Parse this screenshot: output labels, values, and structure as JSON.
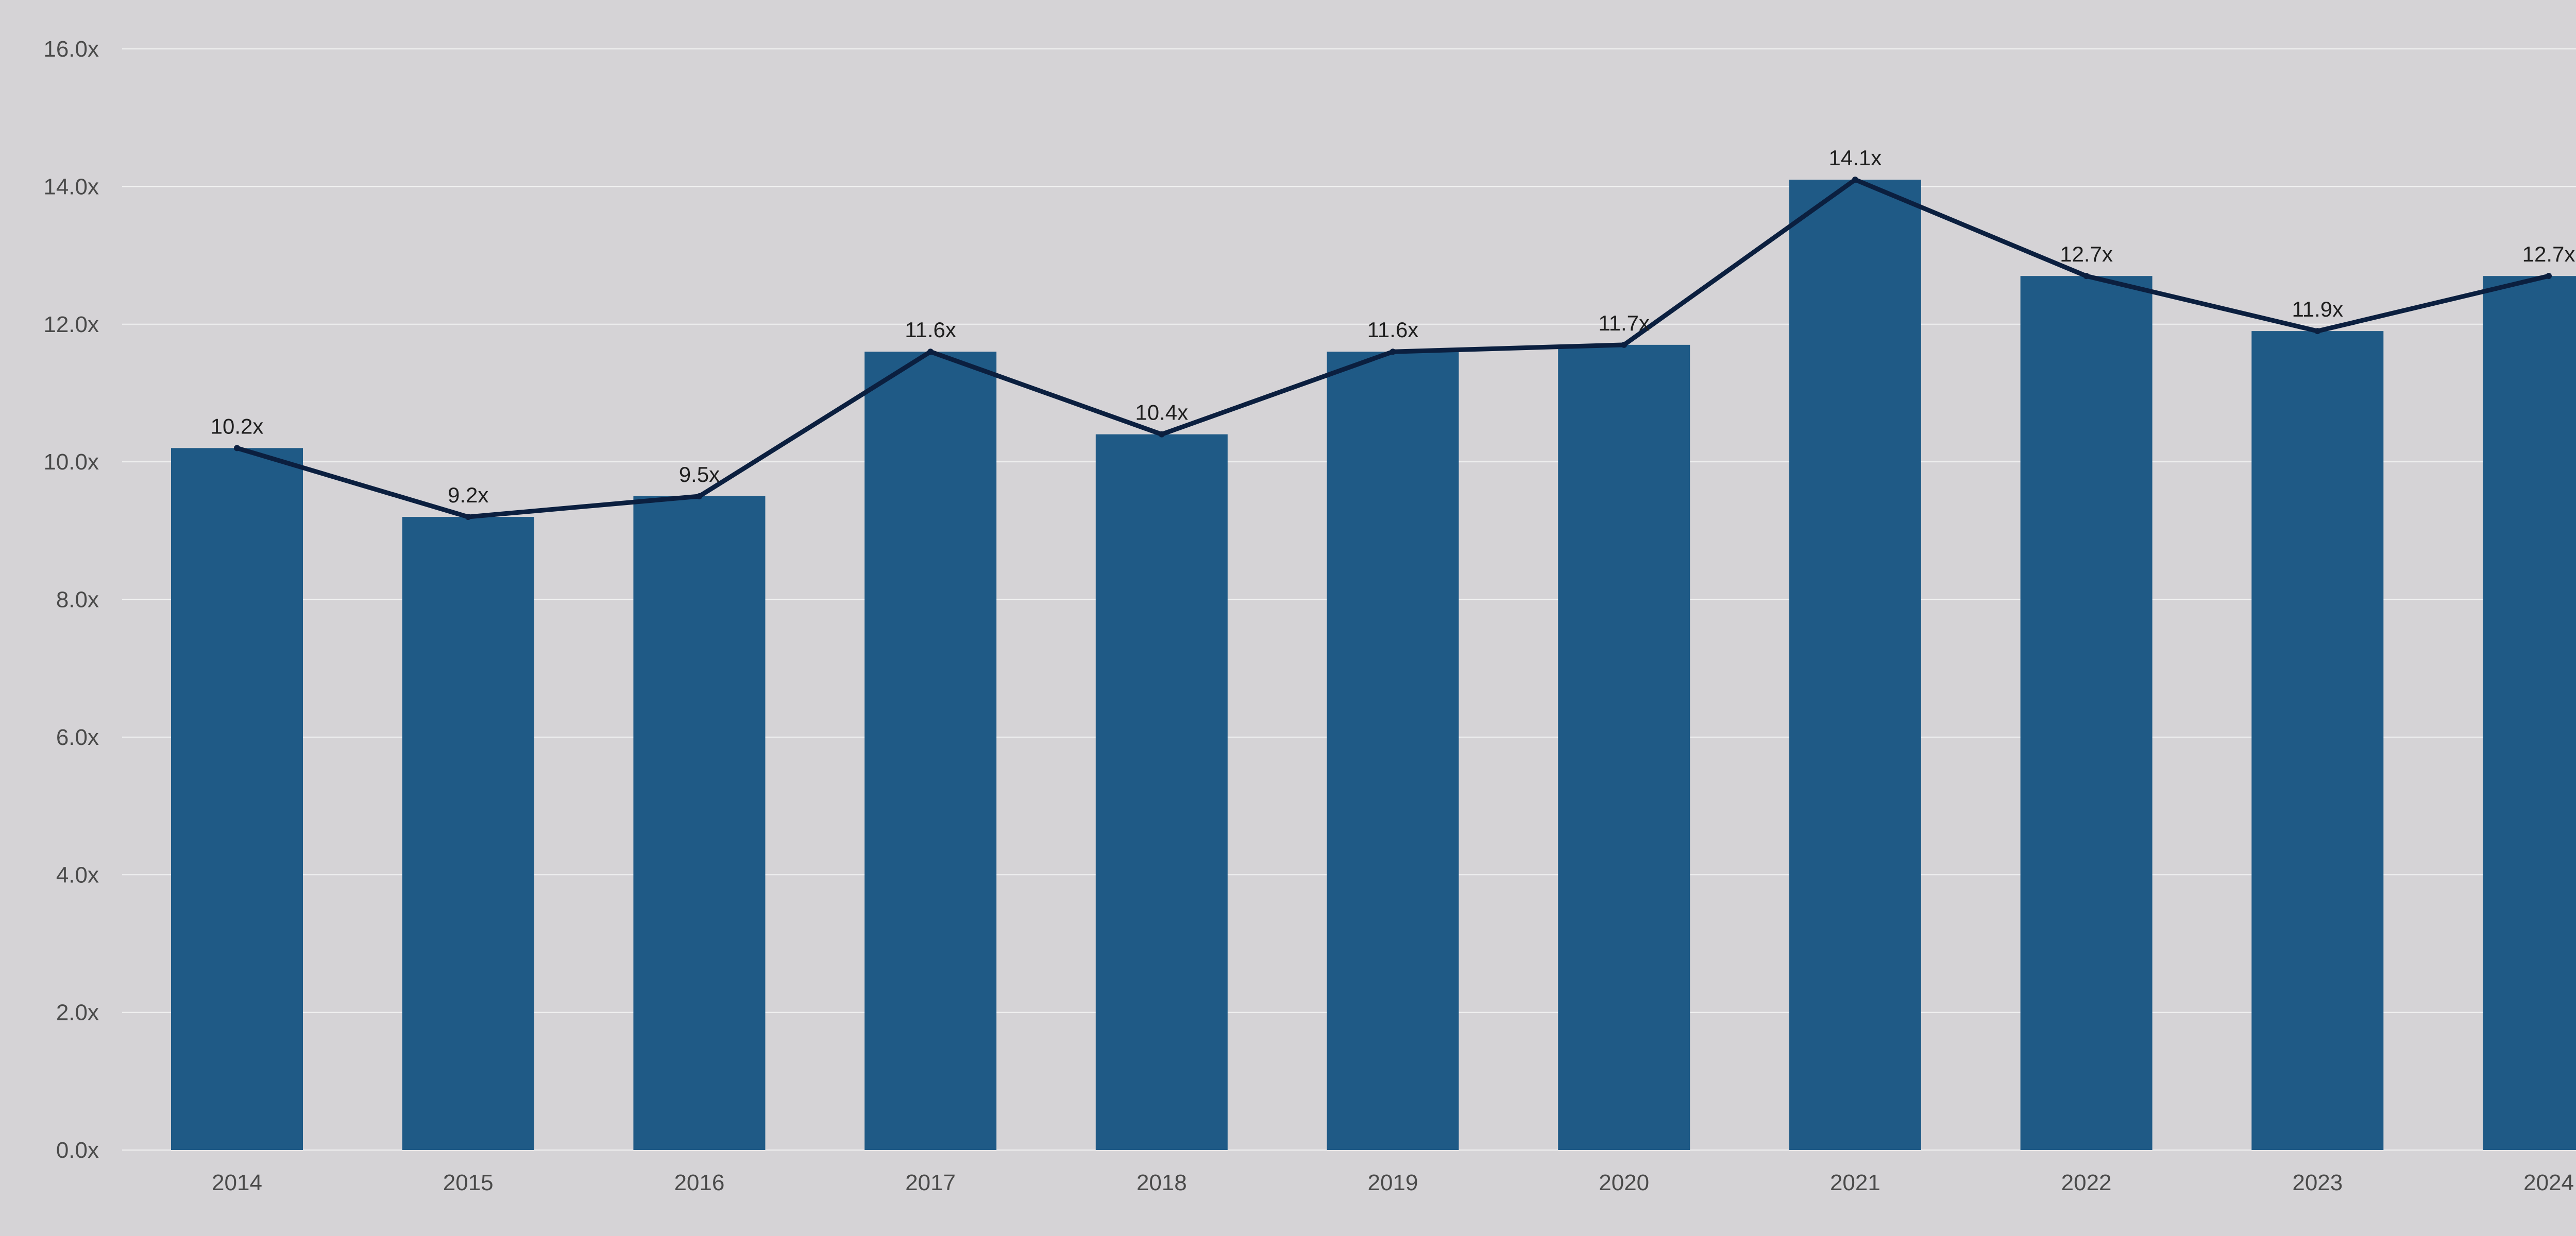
{
  "chart_data": {
    "type": "bar",
    "title": "",
    "xlabel": "",
    "ylabel": "",
    "categories": [
      "2014",
      "2015",
      "2016",
      "2017",
      "2018",
      "2019",
      "2020",
      "2021",
      "2022",
      "2023",
      "2024"
    ],
    "values": [
      10.2,
      9.2,
      9.5,
      11.6,
      10.4,
      11.6,
      11.7,
      14.1,
      12.7,
      11.9,
      12.7
    ],
    "data_labels": [
      "10.2x",
      "9.2x",
      "9.5x",
      "11.6x",
      "10.4x",
      "11.6x",
      "11.7x",
      "14.1x",
      "12.7x",
      "11.9x",
      "12.7x"
    ],
    "line_series": {
      "type": "line",
      "values": [
        10.2,
        9.2,
        9.5,
        11.6,
        10.4,
        11.6,
        11.7,
        14.1,
        12.7,
        11.9,
        12.7
      ]
    },
    "y_ticks": [
      0,
      2,
      4,
      6,
      8,
      10,
      12,
      14,
      16
    ],
    "y_tick_labels": [
      "0.0x",
      "2.0x",
      "4.0x",
      "6.0x",
      "8.0x",
      "10.0x",
      "12.0x",
      "14.0x",
      "16.0x"
    ],
    "ylim": [
      0,
      16
    ],
    "grid": true,
    "legend": "none",
    "colors": {
      "background": "#d5d3d6",
      "bar": "#1f5a86",
      "line": "#0b1f3f",
      "grid": "#f2f2f2",
      "tick_text": "#4a4a4a",
      "label_text": "#1e1e1e"
    }
  }
}
